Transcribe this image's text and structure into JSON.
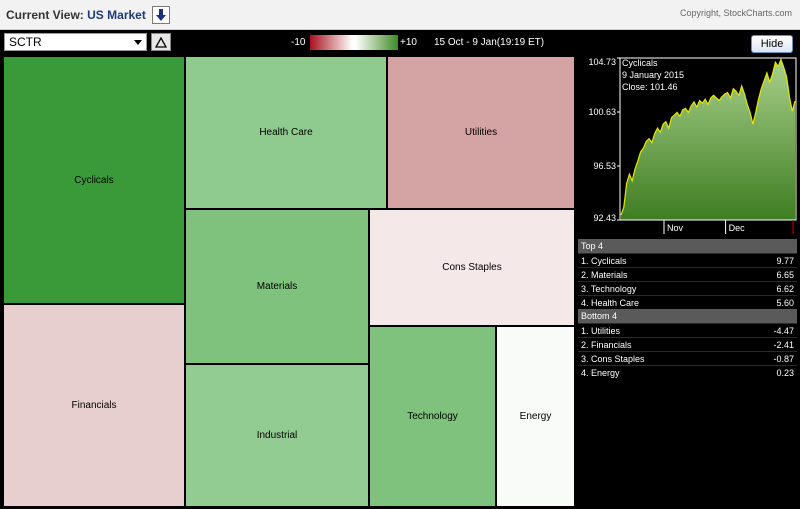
{
  "header": {
    "current_view_label": "Current View:",
    "current_view_value": "US Market",
    "copyright": "Copyright, StockCharts.com"
  },
  "controls": {
    "indicator": "SCTR",
    "scale_min": "-10",
    "scale_max": "+10",
    "date_range": "15 Oct - 9 Jan(19:19 ET)",
    "hide_label": "Hide",
    "colors": {
      "negative": "#a8121e",
      "neutral": "#ffffff",
      "positive": "#3f8a22"
    }
  },
  "treemap": {
    "sectors": [
      {
        "name": "Cyclicals",
        "color": "#3a9a3a"
      },
      {
        "name": "Health Care",
        "color": "#8fca8f"
      },
      {
        "name": "Utilities",
        "color": "#d4a4a4"
      },
      {
        "name": "Materials",
        "color": "#7ec27e"
      },
      {
        "name": "Cons Staples",
        "color": "#f5e8e8"
      },
      {
        "name": "Financials",
        "color": "#e8cfcf"
      },
      {
        "name": "Industrial",
        "color": "#92cc92"
      },
      {
        "name": "Technology",
        "color": "#7ec27e"
      },
      {
        "name": "Energy",
        "color": "#f8fbf8"
      }
    ]
  },
  "chart_data": {
    "type": "area",
    "title": "Cyclicals",
    "annotation_date": "9  January 2015",
    "annotation_close": "Close: 101.46",
    "y_ticks": [
      "104.73",
      "100.63",
      "96.53",
      "92.43"
    ],
    "ylim": [
      92.43,
      104.73
    ],
    "x_ticks": [
      "Nov",
      "Dec"
    ],
    "series": [
      {
        "values": [
          92.8,
          93.4,
          95.2,
          95.9,
          95.4,
          96.3,
          96.9,
          97.6,
          97.9,
          98.4,
          98.6,
          98.3,
          99.0,
          99.4,
          99.1,
          99.7,
          99.9,
          99.4,
          100.2,
          100.4,
          100.6,
          100.3,
          100.8,
          100.9,
          100.6,
          101.1,
          101.4,
          101.0,
          101.5,
          101.3,
          101.6,
          101.2,
          101.7,
          101.9,
          101.7,
          101.5,
          101.8,
          102.0,
          102.1,
          101.7,
          102.4,
          102.2,
          101.9,
          102.6,
          102.0,
          101.2,
          100.6,
          99.7,
          100.6,
          101.6,
          102.4,
          103.0,
          103.6,
          102.9,
          103.5,
          104.4,
          104.1,
          104.6,
          104.0,
          103.3,
          101.8,
          100.7,
          101.46
        ]
      }
    ],
    "colors": {
      "line": "#e6e600",
      "area_top": "#a8d08a",
      "area_bottom": "#3e7d22",
      "frame": "#ffffff"
    }
  },
  "rankings": {
    "top_title": "Top 4",
    "top": [
      {
        "label": "1. Cyclicals",
        "value": "9.77"
      },
      {
        "label": "2. Materials",
        "value": "6.65"
      },
      {
        "label": "3. Technology",
        "value": "6.62"
      },
      {
        "label": "4. Health Care",
        "value": "5.60"
      }
    ],
    "bottom_title": "Bottom 4",
    "bottom": [
      {
        "label": "1. Utilities",
        "value": "-4.47"
      },
      {
        "label": "2. Financials",
        "value": "-2.41"
      },
      {
        "label": "3. Cons Staples",
        "value": "-0.87"
      },
      {
        "label": "4. Energy",
        "value": "0.23"
      }
    ]
  }
}
